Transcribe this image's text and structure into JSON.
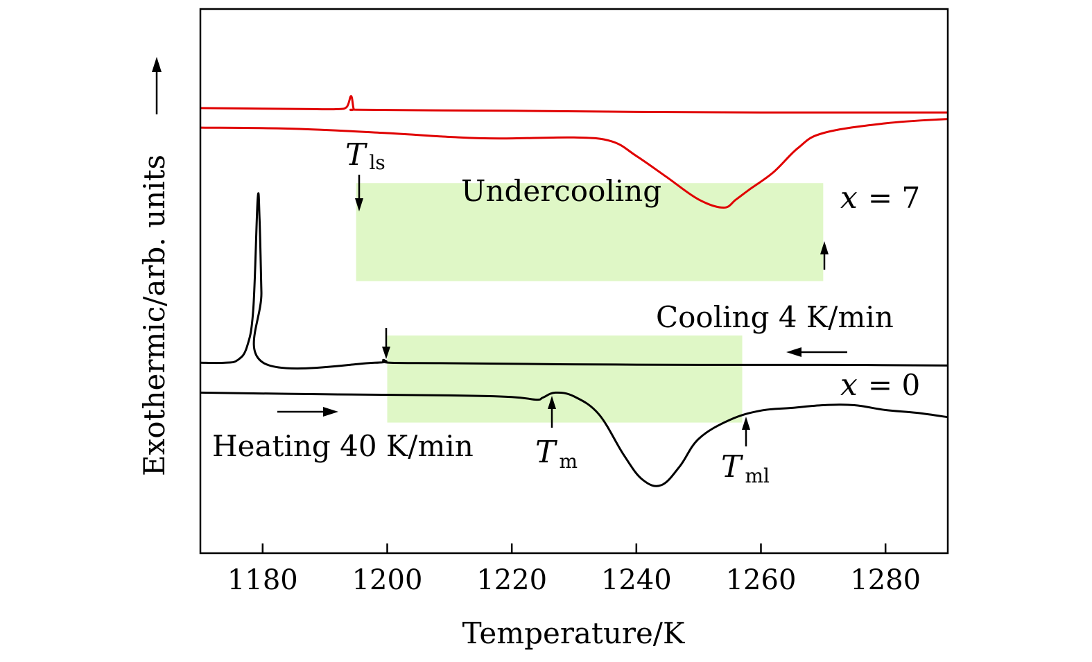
{
  "chart_data": {
    "type": "line",
    "title": "",
    "xlabel": "Temperature/K",
    "ylabel": "Exothermic/arb. units",
    "xlim": [
      1170,
      1290
    ],
    "ylim": [
      0,
      10
    ],
    "x_ticks": [
      1180,
      1200,
      1220,
      1240,
      1260,
      1280
    ],
    "grid": false,
    "y_ticks_shown": false,
    "series": [
      {
        "name": "",
        "color": "#e00000",
        "points": [
          [
            1170,
            8.18
          ],
          [
            1180,
            8.17
          ],
          [
            1188,
            8.16
          ],
          [
            1192,
            8.16
          ],
          [
            1193.5,
            8.2
          ],
          [
            1194.2,
            8.4
          ],
          [
            1194.6,
            8.17
          ],
          [
            1195,
            8.15
          ],
          [
            1205,
            8.14
          ],
          [
            1220,
            8.13
          ],
          [
            1240,
            8.11
          ],
          [
            1260,
            8.1
          ],
          [
            1275,
            8.1
          ],
          [
            1290,
            8.1
          ]
        ]
      },
      {
        "name": "",
        "color": "#e00000",
        "points": [
          [
            1170,
            7.82
          ],
          [
            1185,
            7.8
          ],
          [
            1200,
            7.72
          ],
          [
            1210,
            7.65
          ],
          [
            1218,
            7.62
          ],
          [
            1230,
            7.64
          ],
          [
            1236,
            7.57
          ],
          [
            1240,
            7.3
          ],
          [
            1245,
            6.9
          ],
          [
            1250,
            6.5
          ],
          [
            1254,
            6.35
          ],
          [
            1256,
            6.5
          ],
          [
            1258,
            6.67
          ],
          [
            1262,
            7.0
          ],
          [
            1266,
            7.45
          ],
          [
            1270,
            7.72
          ],
          [
            1280,
            7.9
          ],
          [
            1290,
            7.98
          ]
        ]
      },
      {
        "name": "",
        "color": "#000000",
        "points": [
          [
            1170,
            3.5
          ],
          [
            1174,
            3.5
          ],
          [
            1176,
            3.55
          ],
          [
            1177.5,
            3.8
          ],
          [
            1178.5,
            4.5
          ],
          [
            1179.2,
            6.5
          ],
          [
            1179.5,
            6.15
          ],
          [
            1179.8,
            4.8
          ],
          [
            1180.1,
            3.5
          ],
          [
            1198,
            3.5
          ],
          [
            1199.4,
            3.55
          ],
          [
            1200.4,
            3.5
          ],
          [
            1210,
            3.49
          ],
          [
            1230,
            3.47
          ],
          [
            1250,
            3.46
          ],
          [
            1270,
            3.46
          ],
          [
            1290,
            3.45
          ]
        ]
      },
      {
        "name": "",
        "color": "#000000",
        "points": [
          [
            1170,
            2.95
          ],
          [
            1190,
            2.92
          ],
          [
            1210,
            2.9
          ],
          [
            1220,
            2.87
          ],
          [
            1224,
            2.82
          ],
          [
            1225,
            2.86
          ],
          [
            1227,
            2.95
          ],
          [
            1230,
            2.88
          ],
          [
            1234,
            2.55
          ],
          [
            1238,
            1.8
          ],
          [
            1241,
            1.35
          ],
          [
            1244,
            1.25
          ],
          [
            1247,
            1.6
          ],
          [
            1250,
            2.1
          ],
          [
            1255,
            2.45
          ],
          [
            1260,
            2.62
          ],
          [
            1265,
            2.67
          ],
          [
            1270,
            2.72
          ],
          [
            1275,
            2.72
          ],
          [
            1280,
            2.63
          ],
          [
            1285,
            2.58
          ],
          [
            1290,
            2.5
          ]
        ]
      }
    ],
    "shaded_regions": [
      {
        "label": "Undercooling",
        "x": [
          1195,
          1270
        ],
        "y": [
          5.0,
          6.8
        ],
        "color": "#dff7c6"
      },
      {
        "label": "",
        "x": [
          1200,
          1257
        ],
        "y": [
          2.4,
          4.0
        ],
        "color": "#dff7c6"
      }
    ],
    "annotations": {
      "undercooling": "Undercooling",
      "x7": {
        "sym": "x",
        "eq": "= 7"
      },
      "x0": {
        "sym": "x",
        "eq": "= 0"
      },
      "cooling": "Cooling 4 K/min",
      "heating": "Heating 40 K/min",
      "t_ls": {
        "sym": "T",
        "sub": "ls"
      },
      "t_m": {
        "sym": "T",
        "sub": "m"
      },
      "t_ml": {
        "sym": "T",
        "sub": "ml"
      }
    }
  }
}
